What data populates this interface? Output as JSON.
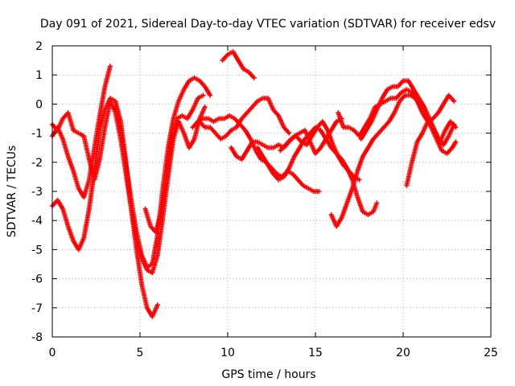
{
  "chart_data": {
    "type": "scatter",
    "title": "Day 091 of 2021, Sidereal Day-to-day VTEC variation (SDTVAR) for receiver edsv",
    "xlabel": "GPS time / hours",
    "ylabel": "SDTVAR / TECUs",
    "xlim": [
      0,
      25
    ],
    "ylim": [
      -8,
      2
    ],
    "xticks": [
      "0",
      "5",
      "10",
      "15",
      "20",
      "25"
    ],
    "yticks": [
      "2",
      "1",
      "0",
      "-1",
      "-2",
      "-3",
      "-4",
      "-5",
      "-6",
      "-7",
      "-8"
    ],
    "grid": true,
    "marker": "+",
    "color": "#ff0000",
    "series": [
      {
        "points": [
          [
            0.0,
            -1.1
          ],
          [
            0.3,
            -0.8
          ],
          [
            0.6,
            -1.2
          ],
          [
            0.9,
            -1.8
          ],
          [
            1.2,
            -2.3
          ],
          [
            1.5,
            -2.9
          ],
          [
            1.8,
            -3.2
          ],
          [
            2.1,
            -2.6
          ],
          [
            2.4,
            -1.5
          ],
          [
            2.7,
            -0.4
          ],
          [
            3.0,
            0.6
          ],
          [
            3.3,
            1.3
          ]
        ]
      },
      {
        "points": [
          [
            0.0,
            -3.5
          ],
          [
            0.3,
            -3.3
          ],
          [
            0.6,
            -3.6
          ],
          [
            0.9,
            -4.2
          ],
          [
            1.2,
            -4.7
          ],
          [
            1.5,
            -5.0
          ],
          [
            1.8,
            -4.6
          ],
          [
            2.1,
            -3.6
          ],
          [
            2.4,
            -2.3
          ],
          [
            2.7,
            -0.9
          ],
          [
            3.0,
            -0.2
          ],
          [
            3.3,
            0.2
          ],
          [
            3.6,
            0.1
          ],
          [
            3.9,
            -0.6
          ],
          [
            4.2,
            -2.0
          ],
          [
            4.5,
            -3.6
          ],
          [
            4.8,
            -5.0
          ],
          [
            5.1,
            -6.2
          ],
          [
            5.4,
            -7.0
          ],
          [
            5.7,
            -7.3
          ],
          [
            6.0,
            -6.9
          ]
        ]
      },
      {
        "points": [
          [
            0.0,
            -0.7
          ],
          [
            0.3,
            -0.9
          ],
          [
            0.6,
            -0.5
          ],
          [
            0.9,
            -0.3
          ],
          [
            1.2,
            -0.9
          ],
          [
            1.5,
            -1.0
          ],
          [
            1.8,
            -1.1
          ],
          [
            2.1,
            -1.9
          ],
          [
            2.4,
            -2.6
          ],
          [
            2.7,
            -1.9
          ],
          [
            3.0,
            -0.8
          ],
          [
            3.3,
            0.1
          ],
          [
            3.6,
            -0.3
          ],
          [
            3.9,
            -1.2
          ],
          [
            4.2,
            -2.4
          ],
          [
            4.5,
            -3.6
          ],
          [
            4.8,
            -4.6
          ],
          [
            5.1,
            -5.3
          ],
          [
            5.4,
            -5.7
          ],
          [
            5.7,
            -5.8
          ],
          [
            6.0,
            -5.2
          ],
          [
            6.3,
            -3.9
          ],
          [
            6.6,
            -2.5
          ],
          [
            6.9,
            -1.2
          ],
          [
            7.2,
            -0.6
          ],
          [
            7.5,
            -1.0
          ],
          [
            7.8,
            -1.5
          ],
          [
            8.1,
            -1.2
          ],
          [
            8.4,
            -0.5
          ],
          [
            8.7,
            -0.1
          ]
        ]
      },
      {
        "points": [
          [
            3.6,
            -0.1
          ],
          [
            3.9,
            -0.9
          ],
          [
            4.2,
            -2.1
          ],
          [
            4.5,
            -3.3
          ],
          [
            4.8,
            -4.4
          ],
          [
            5.1,
            -5.2
          ],
          [
            5.4,
            -5.6
          ],
          [
            5.7,
            -5.5
          ],
          [
            6.0,
            -4.5
          ],
          [
            6.3,
            -2.9
          ],
          [
            6.6,
            -1.5
          ],
          [
            6.9,
            -0.5
          ],
          [
            7.2,
            0.1
          ],
          [
            7.5,
            0.5
          ],
          [
            7.8,
            0.8
          ],
          [
            8.1,
            0.9
          ],
          [
            8.4,
            0.8
          ],
          [
            8.7,
            0.6
          ],
          [
            9.0,
            0.3
          ]
        ]
      },
      {
        "points": [
          [
            5.3,
            -3.6
          ],
          [
            5.6,
            -4.2
          ],
          [
            5.9,
            -4.4
          ],
          [
            6.2,
            -3.7
          ],
          [
            6.5,
            -2.6
          ],
          [
            6.8,
            -1.3
          ],
          [
            7.1,
            -0.5
          ],
          [
            7.4,
            -0.4
          ],
          [
            7.7,
            -0.5
          ],
          [
            8.0,
            -0.2
          ],
          [
            8.3,
            0.2
          ],
          [
            8.6,
            0.3
          ]
        ]
      },
      {
        "points": [
          [
            8.4,
            -0.6
          ],
          [
            8.7,
            -0.8
          ],
          [
            9.0,
            -0.8
          ],
          [
            9.3,
            -1.0
          ],
          [
            9.6,
            -1.2
          ],
          [
            9.9,
            -1.1
          ],
          [
            10.2,
            -0.9
          ],
          [
            10.5,
            -0.8
          ],
          [
            10.8,
            -0.5
          ],
          [
            11.1,
            -0.3
          ],
          [
            11.4,
            -0.1
          ],
          [
            11.7,
            0.1
          ],
          [
            12.0,
            0.2
          ],
          [
            12.3,
            0.2
          ],
          [
            12.6,
            -0.2
          ],
          [
            12.9,
            -0.4
          ],
          [
            13.2,
            -0.8
          ],
          [
            13.5,
            -1.0
          ]
        ]
      },
      {
        "points": [
          [
            8.0,
            -0.8
          ],
          [
            8.3,
            -0.6
          ],
          [
            8.6,
            -0.5
          ],
          [
            8.9,
            -0.5
          ],
          [
            9.2,
            -0.6
          ],
          [
            9.5,
            -0.5
          ],
          [
            9.8,
            -0.5
          ],
          [
            10.1,
            -0.4
          ],
          [
            10.4,
            -0.5
          ],
          [
            10.7,
            -0.7
          ],
          [
            11.0,
            -0.9
          ],
          [
            11.3,
            -1.2
          ],
          [
            11.6,
            -1.6
          ],
          [
            11.9,
            -1.9
          ],
          [
            12.2,
            -2.0
          ],
          [
            12.5,
            -2.2
          ],
          [
            12.8,
            -2.4
          ],
          [
            13.1,
            -2.5
          ],
          [
            13.4,
            -2.3
          ],
          [
            13.7,
            -2.4
          ],
          [
            14.0,
            -2.6
          ],
          [
            14.3,
            -2.8
          ],
          [
            14.6,
            -2.9
          ],
          [
            14.9,
            -3.0
          ],
          [
            15.2,
            -3.0
          ]
        ]
      },
      {
        "points": [
          [
            9.7,
            1.5
          ],
          [
            10.0,
            1.7
          ],
          [
            10.3,
            1.8
          ],
          [
            10.6,
            1.5
          ],
          [
            10.9,
            1.2
          ],
          [
            11.2,
            1.1
          ],
          [
            11.5,
            0.9
          ]
        ]
      },
      {
        "points": [
          [
            10.2,
            -1.5
          ],
          [
            10.5,
            -1.8
          ],
          [
            10.8,
            -1.9
          ],
          [
            11.1,
            -1.6
          ],
          [
            11.4,
            -1.3
          ],
          [
            11.7,
            -1.3
          ],
          [
            12.0,
            -1.4
          ],
          [
            12.3,
            -1.5
          ],
          [
            12.6,
            -1.5
          ],
          [
            12.9,
            -1.4
          ],
          [
            13.2,
            -1.5
          ],
          [
            13.5,
            -1.3
          ],
          [
            13.8,
            -1.1
          ],
          [
            14.1,
            -1.0
          ],
          [
            14.4,
            -0.9
          ],
          [
            14.7,
            -1.3
          ],
          [
            15.0,
            -1.7
          ],
          [
            15.3,
            -1.5
          ],
          [
            15.6,
            -1.2
          ],
          [
            15.9,
            -0.9
          ],
          [
            16.2,
            -0.6
          ],
          [
            16.5,
            -0.5
          ]
        ]
      },
      {
        "points": [
          [
            11.7,
            -1.5
          ],
          [
            12.0,
            -1.8
          ],
          [
            12.3,
            -2.1
          ],
          [
            12.6,
            -2.4
          ],
          [
            12.9,
            -2.6
          ],
          [
            13.2,
            -2.5
          ],
          [
            13.5,
            -2.2
          ],
          [
            13.8,
            -1.8
          ],
          [
            14.1,
            -1.5
          ],
          [
            14.4,
            -1.2
          ],
          [
            14.7,
            -1.0
          ],
          [
            15.0,
            -0.8
          ],
          [
            15.3,
            -0.9
          ],
          [
            15.6,
            -1.2
          ],
          [
            15.9,
            -1.5
          ],
          [
            16.2,
            -1.7
          ],
          [
            16.5,
            -1.9
          ],
          [
            16.8,
            -2.2
          ],
          [
            17.1,
            -2.6
          ],
          [
            17.4,
            -3.2
          ],
          [
            17.7,
            -3.7
          ],
          [
            18.0,
            -3.8
          ],
          [
            18.3,
            -3.7
          ],
          [
            18.5,
            -3.4
          ]
        ]
      },
      {
        "points": [
          [
            15.9,
            -3.8
          ],
          [
            16.2,
            -4.2
          ],
          [
            16.5,
            -3.9
          ],
          [
            16.8,
            -3.4
          ],
          [
            17.1,
            -2.9
          ],
          [
            17.4,
            -2.3
          ],
          [
            17.7,
            -1.8
          ],
          [
            18.0,
            -1.5
          ],
          [
            18.3,
            -1.2
          ],
          [
            18.6,
            -1.0
          ],
          [
            18.9,
            -0.8
          ],
          [
            19.2,
            -0.6
          ],
          [
            19.5,
            -0.3
          ],
          [
            19.8,
            0.1
          ],
          [
            20.1,
            0.3
          ],
          [
            20.4,
            0.3
          ],
          [
            20.7,
            0.2
          ],
          [
            21.0,
            -0.1
          ],
          [
            21.3,
            -0.4
          ],
          [
            21.6,
            -0.8
          ],
          [
            21.9,
            -1.2
          ],
          [
            22.2,
            -1.6
          ],
          [
            22.5,
            -1.7
          ],
          [
            22.8,
            -1.5
          ],
          [
            23.0,
            -1.3
          ]
        ]
      },
      {
        "points": [
          [
            17.6,
            -1.2
          ],
          [
            17.9,
            -0.9
          ],
          [
            18.2,
            -0.6
          ],
          [
            18.5,
            -0.2
          ],
          [
            18.8,
            0.2
          ],
          [
            19.1,
            0.5
          ],
          [
            19.4,
            0.6
          ],
          [
            19.7,
            0.6
          ],
          [
            20.0,
            0.8
          ],
          [
            20.3,
            0.8
          ],
          [
            20.6,
            0.5
          ],
          [
            20.9,
            0.2
          ],
          [
            21.2,
            -0.1
          ],
          [
            21.5,
            -0.5
          ],
          [
            21.8,
            -0.9
          ],
          [
            22.1,
            -1.3
          ],
          [
            22.4,
            -0.9
          ],
          [
            22.7,
            -0.6
          ],
          [
            23.0,
            -0.8
          ]
        ]
      },
      {
        "points": [
          [
            16.3,
            -0.3
          ],
          [
            16.6,
            -0.8
          ],
          [
            16.9,
            -0.8
          ],
          [
            17.2,
            -0.9
          ],
          [
            17.5,
            -1.1
          ],
          [
            17.8,
            -0.8
          ],
          [
            18.1,
            -0.5
          ],
          [
            18.4,
            -0.1
          ],
          [
            18.7,
            0.0
          ],
          [
            19.0,
            0.1
          ],
          [
            19.3,
            0.2
          ],
          [
            19.6,
            0.2
          ],
          [
            19.9,
            0.4
          ],
          [
            20.2,
            0.5
          ],
          [
            20.5,
            0.4
          ],
          [
            20.8,
            0.1
          ],
          [
            21.1,
            -0.3
          ],
          [
            21.4,
            -0.6
          ],
          [
            21.7,
            -0.5
          ],
          [
            22.0,
            -0.3
          ],
          [
            22.3,
            0.0
          ],
          [
            22.6,
            0.3
          ],
          [
            22.9,
            0.1
          ]
        ]
      },
      {
        "points": [
          [
            20.2,
            -2.8
          ],
          [
            20.5,
            -2.0
          ],
          [
            20.8,
            -1.3
          ],
          [
            21.1,
            -1.0
          ],
          [
            21.4,
            -0.6
          ],
          [
            21.7,
            -0.8
          ],
          [
            22.0,
            -1.2
          ],
          [
            22.3,
            -1.4
          ],
          [
            22.6,
            -1.1
          ],
          [
            22.9,
            -0.7
          ]
        ]
      },
      {
        "points": [
          [
            13.0,
            -1.6
          ],
          [
            13.3,
            -1.4
          ],
          [
            13.6,
            -1.2
          ],
          [
            13.9,
            -1.1
          ],
          [
            14.2,
            -1.3
          ],
          [
            14.5,
            -1.4
          ],
          [
            14.8,
            -1.1
          ],
          [
            15.1,
            -0.8
          ],
          [
            15.4,
            -0.6
          ],
          [
            15.7,
            -0.9
          ],
          [
            16.0,
            -1.4
          ],
          [
            16.3,
            -1.8
          ],
          [
            16.6,
            -2.1
          ],
          [
            16.9,
            -2.3
          ],
          [
            17.2,
            -2.5
          ],
          [
            17.5,
            -2.6
          ]
        ]
      }
    ]
  }
}
